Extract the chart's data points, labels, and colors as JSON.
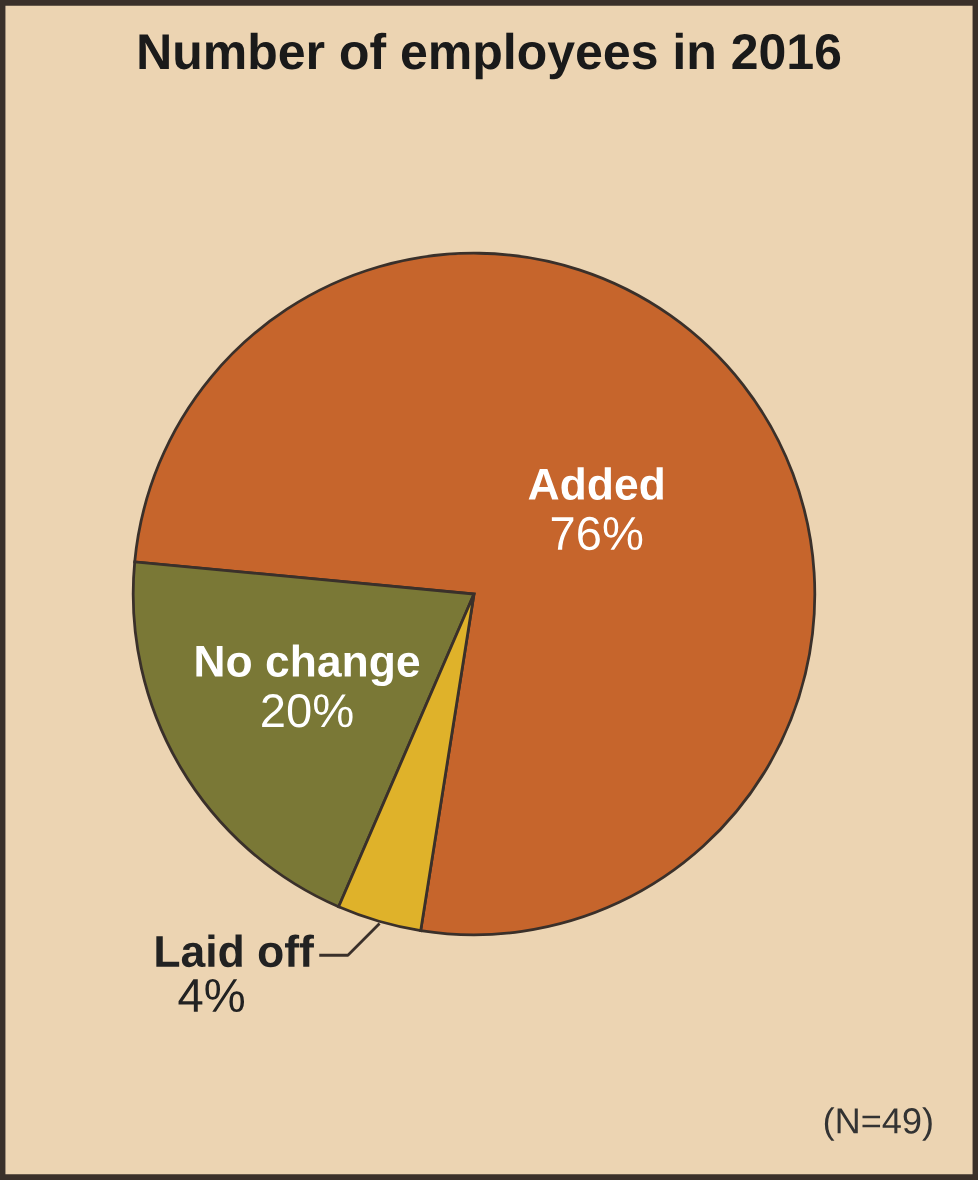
{
  "chart_data": {
    "type": "pie",
    "title": "Number of employees in 2016",
    "categories": [
      "Added",
      "No change",
      "Laid off"
    ],
    "values": [
      76,
      20,
      4
    ],
    "colors": [
      "#c6652c",
      "#7a7836",
      "#dfb22a"
    ],
    "value_labels": [
      "76%",
      "20%",
      "4%"
    ],
    "annotations": [
      "(N=49)"
    ]
  }
}
